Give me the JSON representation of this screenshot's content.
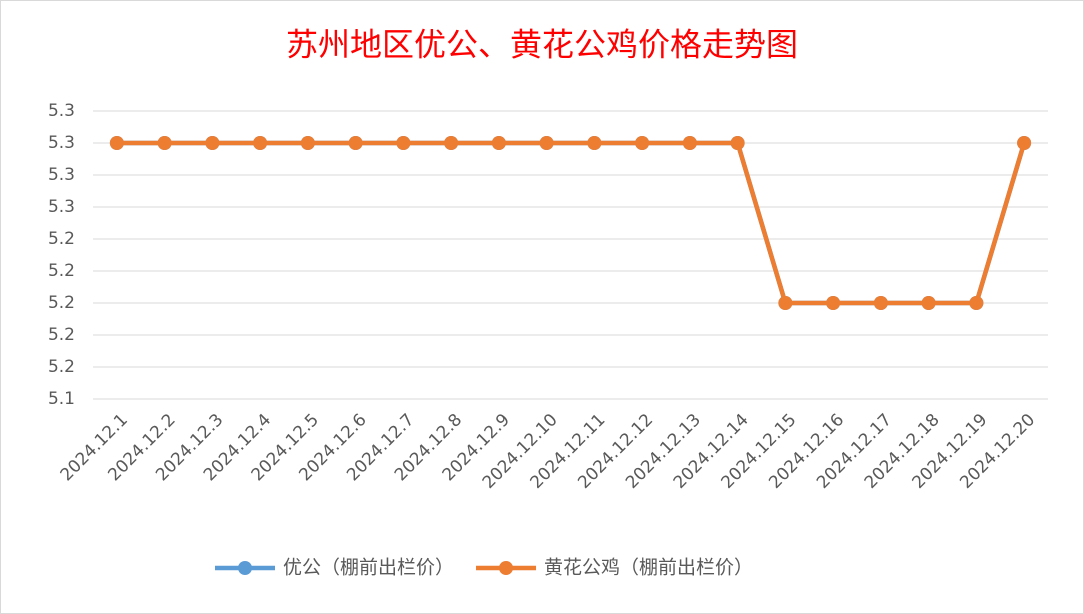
{
  "chart_data": {
    "type": "line",
    "title": "苏州地区优公、黄花公鸡价格走势图",
    "categories": [
      "2024.12.1",
      "2024.12.2",
      "2024.12.3",
      "2024.12.4",
      "2024.12.5",
      "2024.12.6",
      "2024.12.7",
      "2024.12.8",
      "2024.12.9",
      "2024.12.10",
      "2024.12.11",
      "2024.12.12",
      "2024.12.13",
      "2024.12.14",
      "2024.12.15",
      "2024.12.16",
      "2024.12.17",
      "2024.12.18",
      "2024.12.19",
      "2024.12.20"
    ],
    "series": [
      {
        "name": "优公（棚前出栏价）",
        "color": "#5b9bd5",
        "values": [
          5.3,
          5.3,
          5.3,
          5.3,
          5.3,
          5.3,
          5.3,
          5.3,
          5.3,
          5.3,
          5.3,
          5.3,
          5.3,
          5.3,
          5.2,
          5.2,
          5.2,
          5.2,
          5.2,
          5.3
        ]
      },
      {
        "name": "黄花公鸡（棚前出栏价）",
        "color": "#ed7d31",
        "values": [
          5.3,
          5.3,
          5.3,
          5.3,
          5.3,
          5.3,
          5.3,
          5.3,
          5.3,
          5.3,
          5.3,
          5.3,
          5.3,
          5.3,
          5.2,
          5.2,
          5.2,
          5.2,
          5.2,
          5.3
        ]
      }
    ],
    "ylim": [
      5.14,
      5.32
    ],
    "yticks": [
      {
        "value": 5.32,
        "label": "5.3"
      },
      {
        "value": 5.3,
        "label": "5.3"
      },
      {
        "value": 5.28,
        "label": "5.3"
      },
      {
        "value": 5.26,
        "label": "5.3"
      },
      {
        "value": 5.24,
        "label": "5.2"
      },
      {
        "value": 5.22,
        "label": "5.2"
      },
      {
        "value": 5.2,
        "label": "5.2"
      },
      {
        "value": 5.18,
        "label": "5.2"
      },
      {
        "value": 5.16,
        "label": "5.2"
      },
      {
        "value": 5.14,
        "label": "5.1"
      }
    ],
    "grid": true,
    "legend": "bottom"
  }
}
